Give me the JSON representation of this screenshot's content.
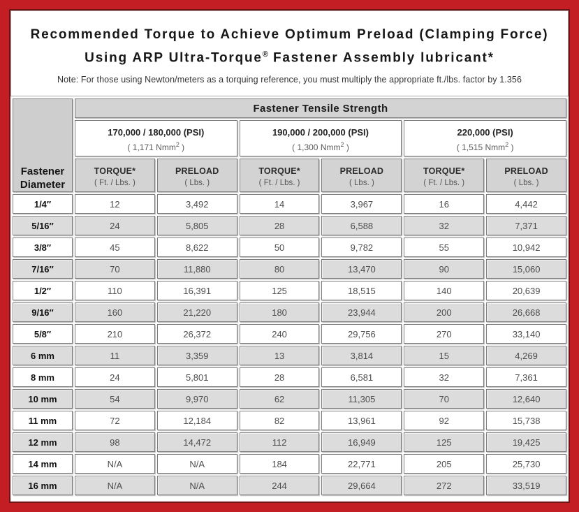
{
  "title": {
    "line1": "Recommended Torque to Achieve Optimum Preload (Clamping Force)",
    "line2_pre": "Using ARP Ultra-Torque",
    "line2_sup": "®",
    "line2_post": " Fastener Assembly lubricant*"
  },
  "note": "Note: For those using Newton/meters as a torquing reference, you must multiply the appropriate ft./lbs. factor by 1.356",
  "table": {
    "corner_header": "Fastener Diameter",
    "main_header": "Fastener Tensile Strength",
    "groups": [
      {
        "psi": "170,000 / 180,000 (PSI)",
        "nmm_pre": "( 1,171 Nmm",
        "nmm_sup": "2",
        "nmm_post": " )"
      },
      {
        "psi": "190,000 / 200,000 (PSI)",
        "nmm_pre": "( 1,300 Nmm",
        "nmm_sup": "2",
        "nmm_post": " )"
      },
      {
        "psi": "220,000 (PSI)",
        "nmm_pre": "( 1,515 Nmm",
        "nmm_sup": "2",
        "nmm_post": " )"
      }
    ],
    "sub_headers": {
      "torque_label": "TORQUE*",
      "torque_unit": "( Ft. / Lbs. )",
      "preload_label": "PRELOAD",
      "preload_unit": "( Lbs. )"
    },
    "rows": [
      {
        "diameter": "1/4″",
        "values": [
          "12",
          "3,492",
          "14",
          "3,967",
          "16",
          "4,442"
        ]
      },
      {
        "diameter": "5/16″",
        "values": [
          "24",
          "5,805",
          "28",
          "6,588",
          "32",
          "7,371"
        ]
      },
      {
        "diameter": "3/8″",
        "values": [
          "45",
          "8,622",
          "50",
          "9,782",
          "55",
          "10,942"
        ]
      },
      {
        "diameter": "7/16″",
        "values": [
          "70",
          "11,880",
          "80",
          "13,470",
          "90",
          "15,060"
        ]
      },
      {
        "diameter": "1/2″",
        "values": [
          "110",
          "16,391",
          "125",
          "18,515",
          "140",
          "20,639"
        ]
      },
      {
        "diameter": "9/16″",
        "values": [
          "160",
          "21,220",
          "180",
          "23,944",
          "200",
          "26,668"
        ]
      },
      {
        "diameter": "5/8″",
        "values": [
          "210",
          "26,372",
          "240",
          "29,756",
          "270",
          "33,140"
        ]
      },
      {
        "diameter": "6 mm",
        "values": [
          "11",
          "3,359",
          "13",
          "3,814",
          "15",
          "4,269"
        ]
      },
      {
        "diameter": "8 mm",
        "values": [
          "24",
          "5,801",
          "28",
          "6,581",
          "32",
          "7,361"
        ]
      },
      {
        "diameter": "10 mm",
        "values": [
          "54",
          "9,970",
          "62",
          "11,305",
          "70",
          "12,640"
        ]
      },
      {
        "diameter": "11 mm",
        "values": [
          "72",
          "12,184",
          "82",
          "13,961",
          "92",
          "15,738"
        ]
      },
      {
        "diameter": "12 mm",
        "values": [
          "98",
          "14,472",
          "112",
          "16,949",
          "125",
          "19,425"
        ]
      },
      {
        "diameter": "14 mm",
        "values": [
          "N/A",
          "N/A",
          "184",
          "22,771",
          "205",
          "25,730"
        ]
      },
      {
        "diameter": "16 mm",
        "values": [
          "N/A",
          "N/A",
          "244",
          "29,664",
          "272",
          "33,519"
        ]
      }
    ]
  },
  "colors": {
    "frame_red": "#c21e23",
    "frame_dark_line": "#6f1317",
    "header_gray": "#d3d3d3",
    "row_alt_gray": "#dcdcdc",
    "cell_border_gray": "#7d7d7d"
  }
}
